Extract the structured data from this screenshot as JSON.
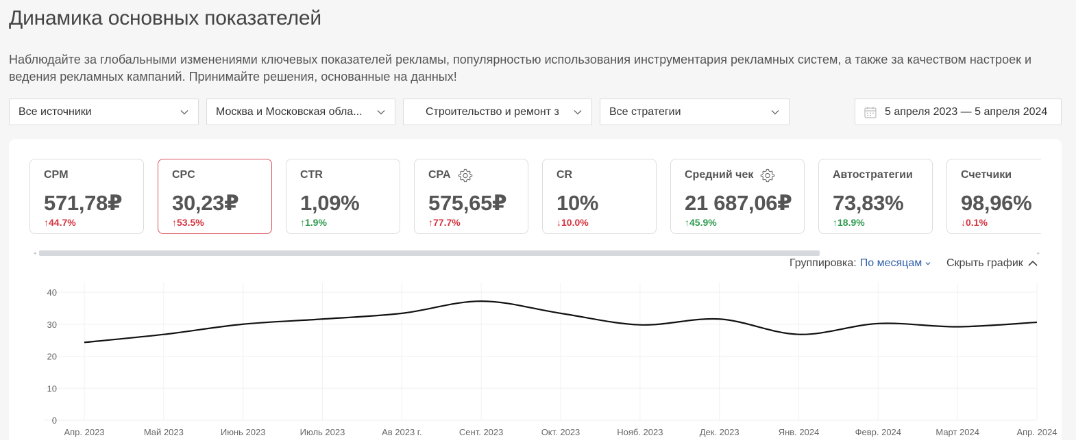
{
  "page": {
    "title": "Динамика основных показателей",
    "description": "Наблюдайте за глобальными изменениями ключевых показателей рекламы, популярностью использования инструментария рекламных систем, а также за качеством настроек и ведения рекламных кампаний. Принимайте решения, основанные на данных!"
  },
  "filters": {
    "source": "Все источники",
    "region": "Москва и Московская обла...",
    "industry": "Строительство и ремонт з",
    "strategy": "Все стратегии",
    "date_range": "5 апреля 2023 — 5 апреля 2024"
  },
  "icons": {
    "chevron": "chevron-down-icon",
    "calendar": "calendar-icon",
    "gear": "gear-icon",
    "chevron_up": "chevron-up-icon"
  },
  "colors": {
    "active_border": "#d9505a",
    "negative": "#d4343f",
    "positive": "#2d9b4e",
    "link": "#2f5fa7"
  },
  "metrics": [
    {
      "name": "CPM",
      "value": "571,78₽",
      "delta": "↑44.7%",
      "tone": "up-bad",
      "active": false,
      "gear": false
    },
    {
      "name": "CPC",
      "value": "30,23₽",
      "delta": "↑53.5%",
      "tone": "up-bad",
      "active": true,
      "gear": false
    },
    {
      "name": "CTR",
      "value": "1,09%",
      "delta": "↑1.9%",
      "tone": "up-good",
      "active": false,
      "gear": false
    },
    {
      "name": "CPA",
      "value": "575,65₽",
      "delta": "↑77.7%",
      "tone": "up-bad",
      "active": false,
      "gear": true
    },
    {
      "name": "CR",
      "value": "10%",
      "delta": "↓10.0%",
      "tone": "down-bad",
      "active": false,
      "gear": false
    },
    {
      "name": "Средний чек",
      "value": "21 687,06₽",
      "delta": "↑45.9%",
      "tone": "up-good",
      "active": false,
      "gear": true
    },
    {
      "name": "Автостратегии",
      "value": "73,83%",
      "delta": "↑18.9%",
      "tone": "up-good",
      "active": false,
      "gear": false
    },
    {
      "name": "Счетчики",
      "value": "98,96%",
      "delta": "↓0.1%",
      "tone": "down-bad",
      "active": false,
      "gear": false
    }
  ],
  "controls": {
    "grouping_label": "Группировка:",
    "grouping_value": "По месяцам",
    "hide_chart": "Скрыть график"
  },
  "chart_data": {
    "type": "line",
    "categories": [
      "Апр. 2023",
      "Май 2023",
      "Июнь 2023",
      "Июль 2023",
      "Ав 2023 г.",
      "Сент. 2023",
      "Окт. 2023",
      "Нояб. 2023",
      "Дек. 2023",
      "Янв. 2024",
      "Февр. 2024",
      "Март 2024",
      "Апр. 2024"
    ],
    "series": [
      {
        "values": [
          24.3,
          26.8,
          30.0,
          31.6,
          33.4,
          37.2,
          33.4,
          29.8,
          31.6,
          26.8,
          30.2,
          29.2,
          30.6
        ]
      }
    ],
    "yticks": [
      0,
      10,
      20,
      30,
      40
    ],
    "ylim": [
      0,
      40
    ],
    "grid": true,
    "line_color": "#111111"
  }
}
